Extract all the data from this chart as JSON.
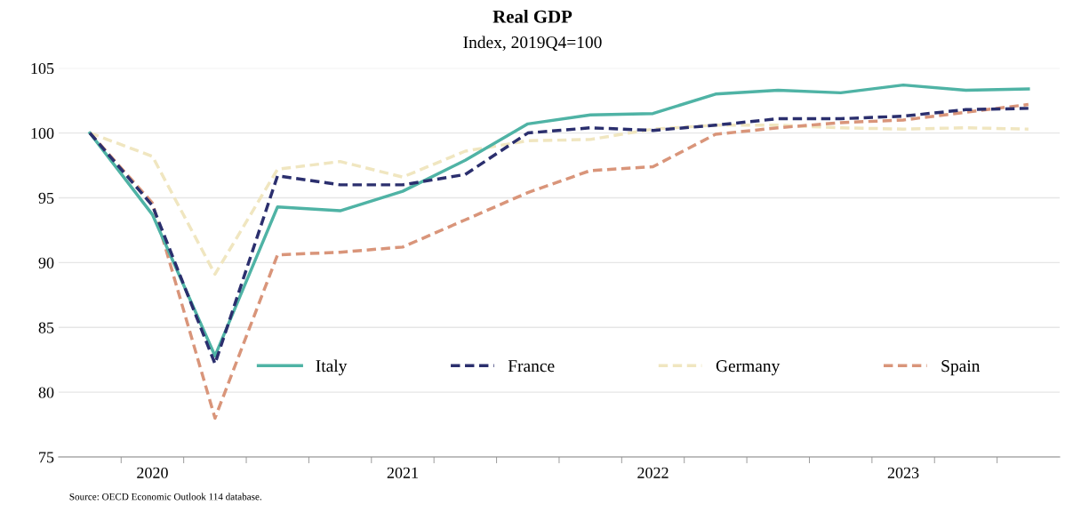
{
  "chart_data": {
    "type": "line",
    "title": "Real GDP",
    "subtitle": "Index, 2019Q4=100",
    "categories": [
      null,
      "2020",
      null,
      null,
      null,
      "2021",
      null,
      null,
      null,
      "2022",
      null,
      null,
      null,
      "2023",
      null,
      null
    ],
    "series": [
      {
        "name": "Italy",
        "color": "#4fb3a5",
        "line_style": "solid",
        "values": [
          100,
          93.7,
          82.8,
          94.3,
          94.0,
          95.5,
          97.9,
          100.7,
          101.4,
          101.5,
          103.0,
          103.3,
          103.1,
          103.7,
          103.3,
          103.4
        ]
      },
      {
        "name": "France",
        "color": "#2b2f6e",
        "line_style": "dashed",
        "values": [
          100,
          94.4,
          82.2,
          96.7,
          96.0,
          96.0,
          96.8,
          100.0,
          100.4,
          100.2,
          100.6,
          101.1,
          101.1,
          101.3,
          101.8,
          101.9
        ]
      },
      {
        "name": "Germany",
        "color": "#f0e6c0",
        "line_style": "dashed",
        "values": [
          100,
          98.2,
          89.1,
          97.2,
          97.8,
          96.6,
          98.6,
          99.4,
          99.5,
          100.3,
          100.6,
          100.6,
          100.4,
          100.3,
          100.4,
          100.3
        ]
      },
      {
        "name": "Spain",
        "color": "#d9957a",
        "line_style": "dashed",
        "values": [
          100,
          94.6,
          78.0,
          90.6,
          90.8,
          91.2,
          93.3,
          95.4,
          97.1,
          97.4,
          99.9,
          100.4,
          100.8,
          101.0,
          101.6,
          102.2
        ]
      }
    ],
    "ylim": [
      75,
      105
    ],
    "yticks": [
      75,
      80,
      85,
      90,
      95,
      100,
      105
    ],
    "grid": "y",
    "legend": "bottom",
    "annotations": [
      "Source: OECD Economic Outlook 114 database."
    ]
  }
}
